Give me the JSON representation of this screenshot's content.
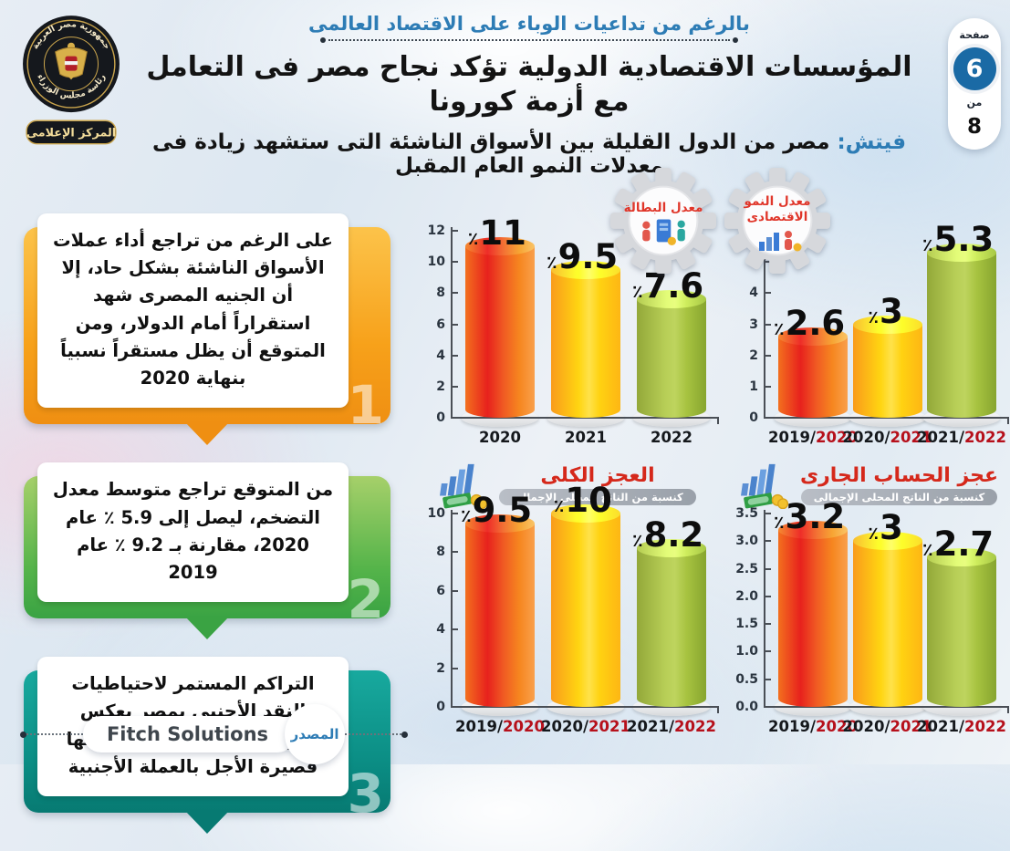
{
  "page": {
    "top_note": "بالرغم من تداعيات الوباء على الاقتصاد العالمى",
    "title": "المؤسسات الاقتصادية الدولية تؤكد نجاح مصر فى التعامل مع أزمة كورونا",
    "subtitle_lead": "فيتش:",
    "subtitle_rest": "مصر من الدول القليلة بين الأسواق الناشئة التى ستشهد زيادة فى معدلات النمو العام المقبل"
  },
  "logo": {
    "ring_top": "جمهورية مصر العربية",
    "ring_bottom": "رئاسة مجلس الوزراء",
    "banner": "المركز الإعلامى"
  },
  "page_indicator": {
    "label": "صفحة",
    "current": "6",
    "of_label": "من",
    "total": "8"
  },
  "callouts": [
    {
      "number": "1",
      "color": "#f7a11a",
      "text": "على الرغم من تراجع أداء عملات الأسواق الناشئة بشكل حاد، إلا أن الجنيه المصرى شهد استقراراً أمام الدولار، ومن المتوقع أن يظل مستقراً نسبياً بنهاية 2020"
    },
    {
      "number": "2",
      "color": "#55b44a",
      "text": "من المتوقع تراجع متوسط معدل التضخم، ليصل إلى 5.9 ٪ عام 2020، مقارنة بـ 9.2 ٪ عام 2019"
    },
    {
      "number": "3",
      "color": "#0b8d84",
      "text": "التراكم المستمر لاحتياطيات النقد الأجنبى بمصر يعكس قدرتها على تغطية مدفوعاتها قصيرة الأجل بالعملة الأجنبية"
    }
  ],
  "source": {
    "label": "المصدر",
    "name": "Fitch Solutions"
  },
  "palette": {
    "accent_blue": "#2d7cb5",
    "title_black": "#131313",
    "chart_title_red": "#d5281b",
    "year_red": "#b6101b",
    "bar_red": [
      "#e7211d",
      "#f6861f"
    ],
    "bar_yellow": [
      "#ffd511",
      "#f99b1c"
    ],
    "bar_green": [
      "#a7c340",
      "#87a52f"
    ],
    "badge_gear_gray": "#d6d8dc",
    "page_circle_blue": "#1a6aa5"
  },
  "chart_data": [
    {
      "type": "bar",
      "name": "unemployment-rate",
      "title": "معدل البطالة",
      "badge_lines": [
        "معدل البطالة",
        ""
      ],
      "unit": "٪",
      "ymax": 12,
      "ylim": [
        0,
        12
      ],
      "grid": false,
      "legend": "none",
      "ticks": [
        {
          "v": 0,
          "label": "0"
        },
        {
          "v": 2,
          "label": "2"
        },
        {
          "v": 4,
          "label": "4"
        },
        {
          "v": 6,
          "label": "6"
        },
        {
          "v": 8,
          "label": "8"
        },
        {
          "v": 10,
          "label": "10"
        },
        {
          "v": 12,
          "label": "12"
        }
      ],
      "categories": [
        "2020",
        "2021",
        "2022"
      ],
      "values": [
        11,
        9.5,
        7.6
      ],
      "bars": [
        {
          "num": "11",
          "value": 11,
          "year_black": "2020",
          "year_red": "",
          "color": "red"
        },
        {
          "num": "9.5",
          "value": 9.5,
          "year_black": "2021",
          "year_red": "",
          "color": "yellow"
        },
        {
          "num": "7.6",
          "value": 7.6,
          "year_black": "2022",
          "year_red": "",
          "color": "green"
        }
      ]
    },
    {
      "type": "bar",
      "name": "economic-growth-rate",
      "title": "معدل النمو الاقتصادى",
      "badge_lines": [
        "معدل النمو",
        "الاقتصادى"
      ],
      "unit": "٪",
      "ymax": 6,
      "ylim": [
        0,
        6
      ],
      "grid": false,
      "legend": "none",
      "ticks": [
        {
          "v": 0,
          "label": "0"
        },
        {
          "v": 1,
          "label": "1"
        },
        {
          "v": 2,
          "label": "2"
        },
        {
          "v": 3,
          "label": "3"
        },
        {
          "v": 4,
          "label": "4"
        },
        {
          "v": 5,
          "label": "5"
        },
        {
          "v": 6,
          "label": "6"
        }
      ],
      "categories": [
        "2019/2020",
        "2020/2021",
        "2021/2022"
      ],
      "values": [
        2.6,
        3,
        5.3
      ],
      "bars": [
        {
          "num": "2.6",
          "value": 2.6,
          "year_black": "2019/",
          "year_red": "2020",
          "color": "red"
        },
        {
          "num": "3",
          "value": 3,
          "year_black": "2020/",
          "year_red": "2021",
          "color": "yellow"
        },
        {
          "num": "5.3",
          "value": 5.3,
          "year_black": "2021/",
          "year_red": "2022",
          "color": "green"
        }
      ]
    },
    {
      "type": "bar",
      "name": "total-deficit",
      "title": "العجز الكلى",
      "subtitle": "كنسبة من الناتج المحلى الإجمالى",
      "unit": "٪",
      "ymax": 10,
      "ylim": [
        0,
        10
      ],
      "grid": false,
      "legend": "none",
      "ticks": [
        {
          "v": 0,
          "label": "0"
        },
        {
          "v": 2,
          "label": "2"
        },
        {
          "v": 4,
          "label": "4"
        },
        {
          "v": 6,
          "label": "6"
        },
        {
          "v": 8,
          "label": "8"
        },
        {
          "v": 10,
          "label": "10"
        }
      ],
      "categories": [
        "2019/2020",
        "2020/2021",
        "2021/2022"
      ],
      "values": [
        9.5,
        10,
        8.2
      ],
      "bars": [
        {
          "num": "9.5",
          "value": 9.5,
          "year_black": "2019/",
          "year_red": "2020",
          "color": "red"
        },
        {
          "num": "10",
          "value": 10,
          "year_black": "2020/",
          "year_red": "2021",
          "color": "yellow"
        },
        {
          "num": "8.2",
          "value": 8.2,
          "year_black": "2021/",
          "year_red": "2022",
          "color": "green"
        }
      ]
    },
    {
      "type": "bar",
      "name": "current-account-deficit",
      "title": "عجز الحساب الجارى",
      "subtitle": "كنسبة من الناتج المحلى الإجمالى",
      "unit": "٪",
      "ymax": 3.5,
      "ylim": [
        0,
        3.5
      ],
      "grid": false,
      "legend": "none",
      "ticks": [
        {
          "v": 0,
          "label": "0.0"
        },
        {
          "v": 0.5,
          "label": "0.5"
        },
        {
          "v": 1,
          "label": "1.0"
        },
        {
          "v": 1.5,
          "label": "1.5"
        },
        {
          "v": 2,
          "label": "2.0"
        },
        {
          "v": 2.5,
          "label": "2.5"
        },
        {
          "v": 3,
          "label": "3.0"
        },
        {
          "v": 3.5,
          "label": "3.5"
        }
      ],
      "categories": [
        "2019/2020",
        "2020/2021",
        "2021/2022"
      ],
      "values": [
        3.2,
        3,
        2.7
      ],
      "bars": [
        {
          "num": "3.2",
          "value": 3.2,
          "year_black": "2019/",
          "year_red": "2020",
          "color": "red"
        },
        {
          "num": "3",
          "value": 3,
          "year_black": "2020/",
          "year_red": "2021",
          "color": "yellow"
        },
        {
          "num": "2.7",
          "value": 2.7,
          "year_black": "2021/",
          "year_red": "2022",
          "color": "green"
        }
      ]
    }
  ]
}
